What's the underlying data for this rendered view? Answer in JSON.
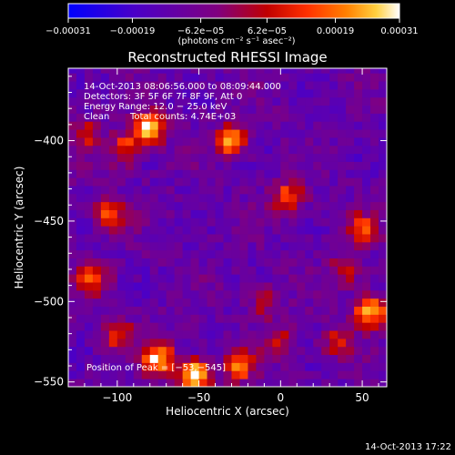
{
  "chart_data": {
    "type": "heatmap",
    "title": "Reconstructed RHESSI Image",
    "xlabel": "Heliocentric X (arcsec)",
    "ylabel": "Heliocentric Y (arcsec)",
    "xlim": [
      -130,
      65
    ],
    "ylim": [
      -553,
      -355
    ],
    "xticks": [
      -100,
      -50,
      0,
      50
    ],
    "xtick_labels": [
      "−100",
      "−50",
      "0",
      "50"
    ],
    "yticks": [
      -400,
      -450,
      -500,
      -550
    ],
    "ytick_labels": [
      "−400",
      "−450",
      "−500",
      "−550"
    ],
    "colorbar": {
      "min": -0.00031,
      "max": 0.00031,
      "ticks": [
        -0.00031,
        -0.00019,
        -6.2e-05,
        6.2e-05,
        0.00019,
        0.00031
      ],
      "tick_labels": [
        "−0.00031",
        "−0.00019",
        "−6.2e−05",
        "6.2e−05",
        "0.00019",
        "0.00031"
      ],
      "unit": "(photons cm⁻² s⁻¹ asec⁻²)",
      "colors": [
        "#0000ff",
        "#4a00c8",
        "#800080",
        "#c00000",
        "#ff3000",
        "#ff8000",
        "#ffd040",
        "#ffffff"
      ]
    },
    "annotations": {
      "time_range": "14-Oct-2013 08:06:56.000 to 08:09:44.000",
      "detectors": "Detectors: 3F 5F 6F 7F 8F 9F, Att 0",
      "energy": "Energy Range: 12.0 − 25.0 keV",
      "clean": "Clean",
      "total_counts": "Total counts: 4.74E+03",
      "peak": "Position of Peak = [−53,−545]"
    },
    "timestamp": "14-Oct-2013 17:22",
    "hotspots": [
      {
        "x": -53,
        "y": -545,
        "intensity": 1.0
      },
      {
        "x": -75,
        "y": -535,
        "intensity": 0.8
      },
      {
        "x": -25,
        "y": -540,
        "intensity": 0.6
      },
      {
        "x": -80,
        "y": -392,
        "intensity": 0.9
      },
      {
        "x": -95,
        "y": -405,
        "intensity": 0.55
      },
      {
        "x": -30,
        "y": -400,
        "intensity": 0.7
      },
      {
        "x": -105,
        "y": -445,
        "intensity": 0.55
      },
      {
        "x": 5,
        "y": -435,
        "intensity": 0.6
      },
      {
        "x": -115,
        "y": -485,
        "intensity": 0.55
      },
      {
        "x": -100,
        "y": -520,
        "intensity": 0.5
      },
      {
        "x": 55,
        "y": -505,
        "intensity": 0.9
      },
      {
        "x": 50,
        "y": -455,
        "intensity": 0.5
      },
      {
        "x": 35,
        "y": -525,
        "intensity": 0.45
      },
      {
        "x": -10,
        "y": -500,
        "intensity": 0.35
      },
      {
        "x": 0,
        "y": -525,
        "intensity": 0.35
      },
      {
        "x": 40,
        "y": -480,
        "intensity": 0.4
      },
      {
        "x": -120,
        "y": -395,
        "intensity": 0.4
      }
    ]
  }
}
